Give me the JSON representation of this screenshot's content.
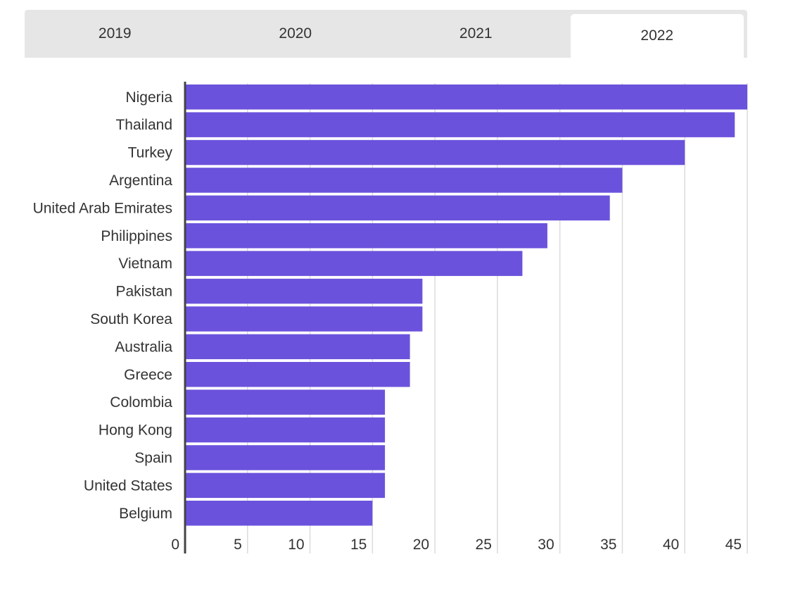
{
  "tabs": [
    {
      "label": "2019",
      "active": false
    },
    {
      "label": "2020",
      "active": false
    },
    {
      "label": "2021",
      "active": false
    },
    {
      "label": "2022",
      "active": true
    }
  ],
  "colors": {
    "bar": "#6b52dc",
    "grid": "#dcdcdc",
    "axis": "#444444",
    "tab_bg": "#e6e6e6",
    "tab_active_bg": "#ffffff"
  },
  "chart_data": {
    "type": "bar",
    "orientation": "horizontal",
    "title": "",
    "xlabel": "",
    "ylabel": "",
    "xlim": [
      0,
      45
    ],
    "x_ticks": [
      0,
      5,
      10,
      15,
      20,
      25,
      30,
      35,
      40,
      45
    ],
    "grid": true,
    "categories": [
      "Nigeria",
      "Thailand",
      "Turkey",
      "Argentina",
      "United Arab Emirates",
      "Philippines",
      "Vietnam",
      "Pakistan",
      "South Korea",
      "Australia",
      "Greece",
      "Colombia",
      "Hong Kong",
      "Spain",
      "United States",
      "Belgium"
    ],
    "values": [
      45,
      44,
      40,
      35,
      34,
      29,
      27,
      19,
      19,
      18,
      18,
      16,
      16,
      16,
      16,
      15
    ]
  }
}
